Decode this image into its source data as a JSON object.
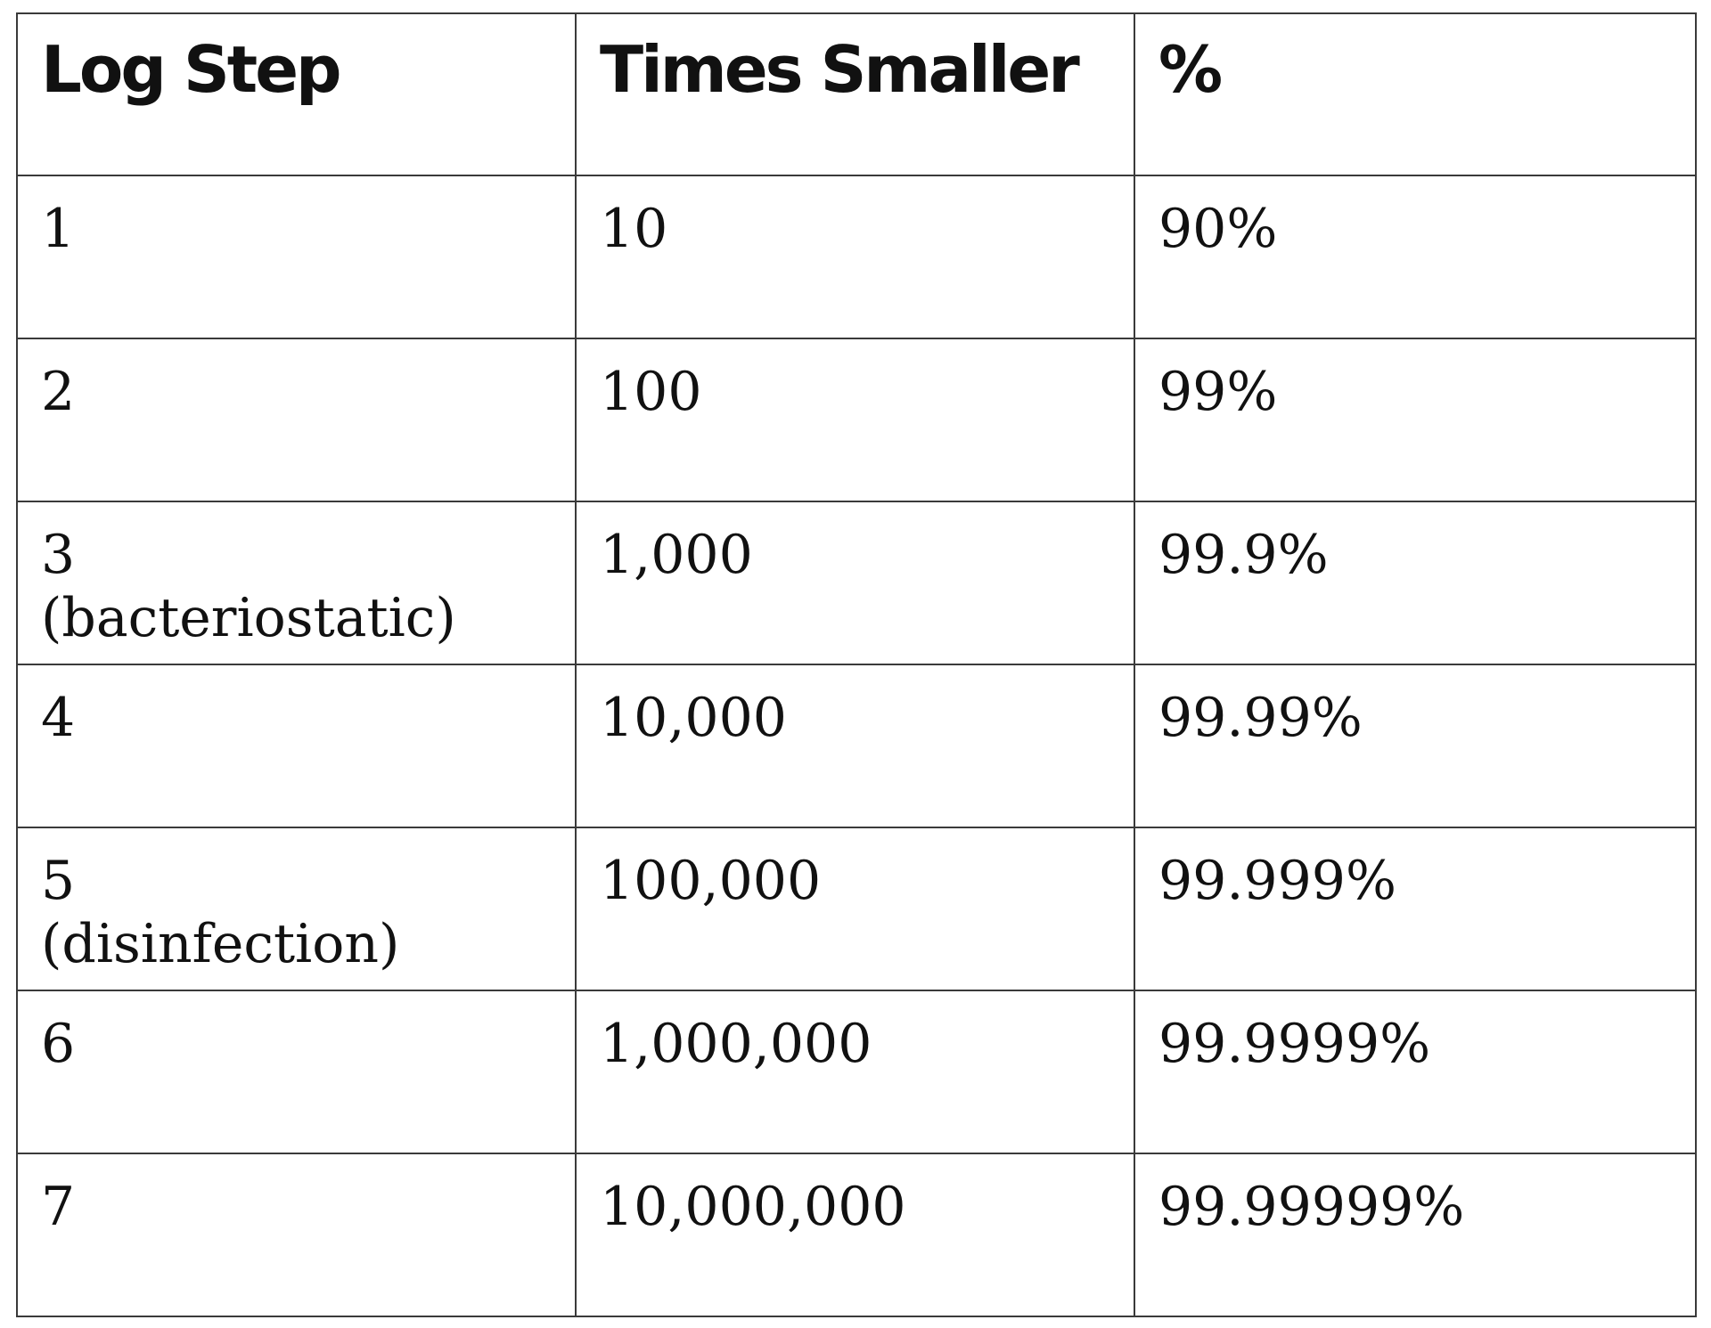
{
  "table": {
    "headers": [
      "Log Step",
      "Times Smaller",
      "%"
    ],
    "rows": [
      {
        "log_step": "1",
        "note": "",
        "times_smaller": "10",
        "percent": "90%"
      },
      {
        "log_step": "2",
        "note": "",
        "times_smaller": "100",
        "percent": "99%"
      },
      {
        "log_step": "3",
        "note": "(bacteriostatic)",
        "times_smaller": "1,000",
        "percent": "99.9%"
      },
      {
        "log_step": "4",
        "note": "",
        "times_smaller": "10,000",
        "percent": "99.99%"
      },
      {
        "log_step": "5",
        "note": "(disinfection)",
        "times_smaller": "100,000",
        "percent": "99.999%"
      },
      {
        "log_step": "6",
        "note": "",
        "times_smaller": "1,000,000",
        "percent": "99.9999%"
      },
      {
        "log_step": "7",
        "note": "",
        "times_smaller": "10,000,000",
        "percent": "99.99999%"
      }
    ]
  },
  "colors": {
    "border": "#3a3a3a",
    "text": "#111111",
    "background": "#ffffff"
  }
}
